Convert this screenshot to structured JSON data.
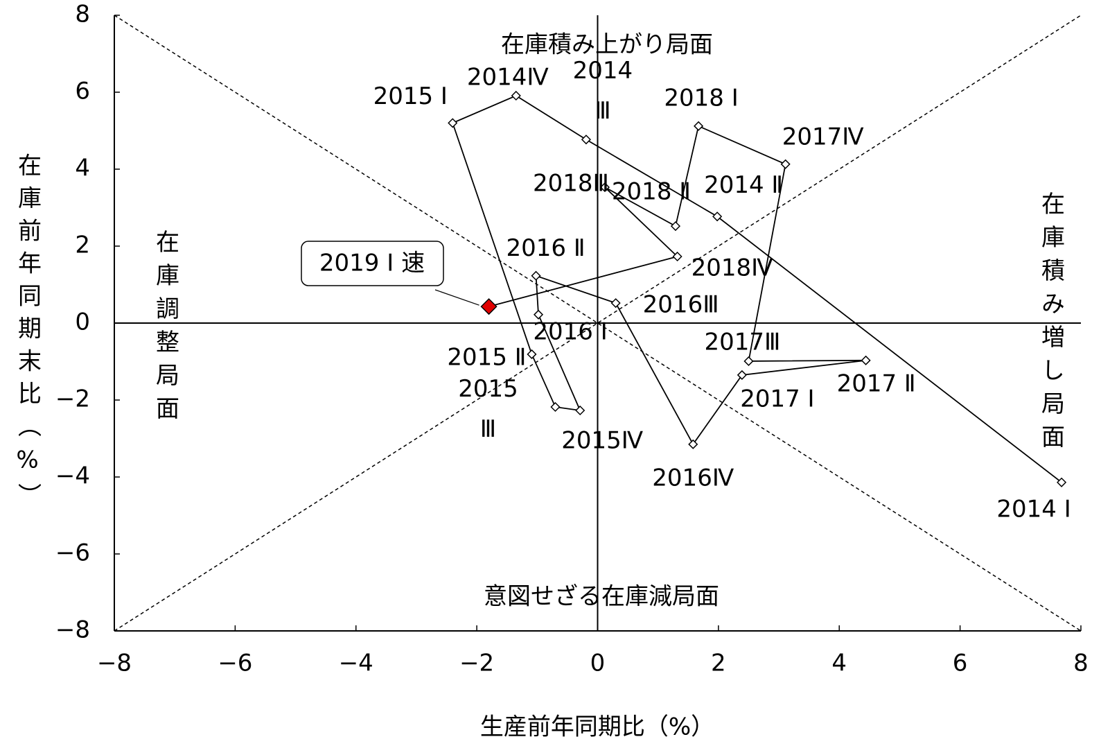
{
  "chart_data": {
    "type": "scatter",
    "xlabel": "生産前年同期比（%）",
    "ylabel": "在庫前年同期末比（%）",
    "x": [
      7.68,
      1.98,
      -0.19,
      -1.35,
      -2.4,
      -1.09,
      -0.7,
      -0.29,
      -0.98,
      -1.02,
      0.3,
      1.58,
      2.39,
      4.44,
      2.5,
      3.11,
      1.67,
      1.29,
      0.12,
      1.32,
      -1.8
    ],
    "values": [
      -4.14,
      2.77,
      4.77,
      5.91,
      5.2,
      -0.81,
      -2.18,
      -2.27,
      0.22,
      1.23,
      0.52,
      -3.15,
      -1.35,
      -0.97,
      -0.99,
      4.13,
      5.12,
      2.52,
      3.53,
      1.73,
      0.43
    ],
    "labels": [
      "2014 Ⅰ",
      "2014 Ⅱ",
      "2014 Ⅲ",
      "2014Ⅳ",
      "2015 Ⅰ",
      "2015 Ⅱ",
      "2015 Ⅲ",
      "2015Ⅳ",
      "2016 Ⅰ",
      "2016 Ⅱ",
      "2016Ⅲ",
      "2016Ⅳ",
      "2017 Ⅰ",
      "2017 Ⅱ",
      "2017Ⅲ",
      "2017Ⅳ",
      "2018 Ⅰ",
      "2018 Ⅱ",
      "2018Ⅲ",
      "2018Ⅳ",
      "2019 Ⅰ 速"
    ],
    "color": "#000000",
    "highlight_color": "#e00000",
    "annotations": [
      "在庫積み上がり局面",
      "意図せざる在庫減局面",
      "在庫調整局面",
      "在庫積み増し局面"
    ],
    "xlim": [
      -8,
      8
    ],
    "ylim": [
      -8,
      8
    ],
    "xticks": [
      {
        "value": -8,
        "label": "−8"
      },
      {
        "value": -6,
        "label": "−6"
      },
      {
        "value": -4,
        "label": "−4"
      },
      {
        "value": -2,
        "label": "−2"
      },
      0,
      2,
      4,
      6,
      8
    ],
    "yticks": [
      {
        "value": -8,
        "label": "−8"
      },
      {
        "value": -6,
        "label": "−6"
      },
      {
        "value": -4,
        "label": "−4"
      },
      {
        "value": -2,
        "label": "−2"
      },
      0,
      2,
      4,
      6,
      8
    ]
  }
}
